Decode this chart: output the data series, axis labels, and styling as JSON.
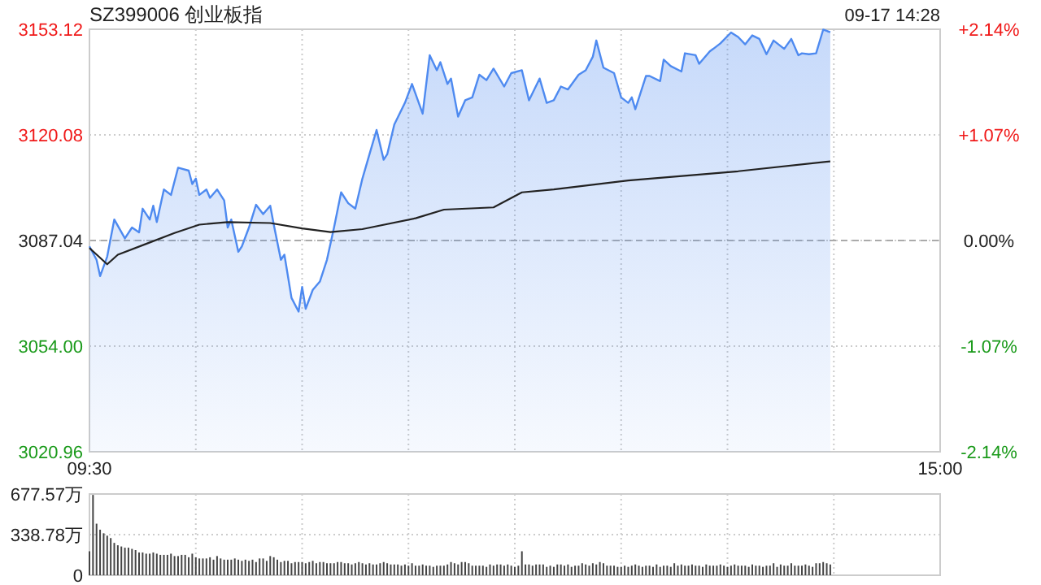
{
  "chart_data": [
    {
      "type": "line",
      "title": "SZ399006 创业板指",
      "annotations": [
        "09-17 14:28"
      ],
      "categories": [
        "09:30",
        null,
        null,
        null,
        null,
        null,
        null,
        null,
        null,
        null,
        null,
        null,
        null,
        null,
        null,
        null,
        null,
        null,
        null,
        null,
        null,
        null,
        null,
        null,
        null,
        null,
        null,
        null,
        null,
        null,
        null,
        null,
        null,
        null,
        null,
        null,
        null,
        null,
        null,
        null,
        null,
        null,
        null,
        null,
        null,
        null,
        null,
        null,
        null,
        null,
        null,
        null,
        null,
        null,
        null,
        null,
        null,
        null,
        null,
        null,
        null,
        null,
        null,
        null,
        null,
        null,
        null,
        null,
        null,
        null,
        null,
        null,
        null,
        null,
        null,
        null,
        null,
        null,
        null,
        null,
        null,
        null,
        null,
        null,
        null,
        null,
        null,
        null,
        null,
        null,
        null,
        null,
        null,
        null,
        null,
        null,
        null,
        null,
        null,
        null,
        null,
        null,
        null,
        null,
        null,
        null,
        null,
        null,
        null,
        null,
        null,
        null,
        null,
        null,
        null,
        null,
        null,
        null,
        null,
        null,
        null,
        null,
        null,
        null,
        null,
        null,
        null,
        null,
        null,
        null,
        null,
        null,
        null,
        null,
        null,
        null,
        null,
        null,
        null,
        null,
        null,
        null,
        null,
        null,
        null,
        null,
        null,
        null,
        null,
        null,
        null,
        null,
        null,
        null,
        null,
        null,
        null,
        null,
        null,
        null,
        null,
        null,
        null,
        null,
        null,
        null,
        null,
        null,
        null,
        null,
        null,
        null,
        null,
        null,
        null,
        null,
        null,
        null,
        null,
        null,
        null,
        null,
        null,
        null,
        null,
        null,
        null,
        null,
        null,
        null,
        null,
        null,
        null,
        null,
        null,
        null,
        null,
        null,
        null,
        null,
        null,
        null,
        null,
        null,
        null,
        null,
        null,
        null,
        null,
        null,
        null,
        null,
        null,
        null,
        null,
        null,
        null,
        null,
        null,
        null,
        null,
        null,
        null,
        null,
        null,
        null,
        null,
        null,
        null,
        null,
        null,
        null,
        null,
        null,
        null,
        null,
        null,
        null,
        null,
        null,
        "15:00"
      ],
      "ylim": [
        3020.96,
        3153.12
      ],
      "yticks": [
        3020.96,
        {
          "value": 3054,
          "label": "3054.00"
        },
        3087.04,
        3120.08,
        3153.12
      ],
      "y2lim": [
        -2.14,
        2.14
      ],
      "y2ticks": [
        {
          "value": -2.14,
          "label": "-2.14%"
        },
        {
          "value": -1.07,
          "label": "-1.07%"
        },
        {
          "value": 0,
          "label": "0.00%"
        },
        {
          "value": 1.07,
          "label": "+1.07%"
        },
        {
          "value": 2.14,
          "label": "+2.14%"
        }
      ],
      "grid": true,
      "ref_lines": [
        {
          "axis": "y",
          "value": 3087.04,
          "line_style": "dashed",
          "color": "#aaaaaa"
        }
      ],
      "series": [
        {
          "type": "area",
          "color": "#4e8af0",
          "values": [
            3085.2,
            null,
            3081.0,
            3075.9,
            null,
            3082.0,
            null,
            3093.6,
            null,
            null,
            3087.7,
            null,
            3091.1,
            null,
            3089.6,
            3097.0,
            null,
            3093.6,
            3097.9,
            3092.8,
            null,
            3103.0,
            null,
            3101.3,
            null,
            3109.8,
            null,
            null,
            3108.9,
            3104.7,
            3106.4,
            3101.3,
            null,
            3103.0,
            3100.4,
            null,
            3103.0,
            null,
            3099.6,
            3091.1,
            3093.6,
            null,
            3083.5,
            3085.2,
            null,
            3091.1,
            null,
            3098.2,
            null,
            3095.3,
            null,
            3097.9,
            3092.0,
            null,
            3081.0,
            3082.6,
            null,
            3069.1,
            null,
            3064.8,
            3072.5,
            3065.7,
            null,
            3071.6,
            null,
            3074.2,
            null,
            3081.0,
            null,
            3091.1,
            null,
            3102.1,
            null,
            3098.7,
            null,
            3097.0,
            null,
            3106.4,
            null,
            3114.0,
            null,
            3121.6,
            null,
            3112.3,
            3114.0,
            null,
            3123.3,
            null,
            null,
            3130.1,
            null,
            3136.0,
            null,
            null,
            3126.7,
            null,
            3145.0,
            null,
            3140.3,
            3142.8,
            null,
            3136.0,
            3137.7,
            null,
            3125.8,
            null,
            3130.9,
            null,
            3131.8,
            null,
            3138.9,
            null,
            3137.2,
            null,
            3140.8,
            null,
            null,
            3135.2,
            null,
            3139.4,
            null,
            null,
            3140.3,
            null,
            3130.9,
            null,
            null,
            3137.7,
            null,
            3130.1,
            null,
            3130.9,
            null,
            3135.2,
            null,
            3134.3,
            null,
            null,
            3138.9,
            null,
            3140.3,
            null,
            3144.5,
            3149.6,
            null,
            3141.1,
            null,
            null,
            3139.4,
            null,
            3131.8,
            null,
            3130.1,
            3131.8,
            3128.1,
            null,
            null,
            3138.5,
            3138.5,
            null,
            null,
            3136.9,
            3143.6,
            null,
            3141.6,
            null,
            null,
            3139.9,
            3145.6,
            null,
            null,
            3145.0,
            3142.3,
            null,
            null,
            3146.2,
            3147.0,
            null,
            3148.7,
            null,
            null,
            3152.1,
            null,
            3150.7,
            null,
            3148.4,
            null,
            3151.2,
            null,
            3150.1,
            null,
            3145.3,
            null,
            3149.6,
            null,
            null,
            3147.0,
            null,
            3150.1,
            null,
            3145.0,
            3145.6,
            null,
            3145.3,
            null,
            3145.6,
            null,
            3153.0,
            null,
            3152.2,
            null,
            null,
            null,
            null,
            null,
            null,
            null,
            null,
            null,
            null,
            null,
            null,
            null,
            null,
            null,
            null,
            null,
            null,
            null,
            null,
            null,
            null,
            null,
            null,
            null,
            null,
            null,
            null,
            null,
            null,
            null
          ]
        },
        {
          "type": "line",
          "color": "#222222",
          "values": [
            3084.7,
            null,
            null,
            null,
            null,
            3079.6,
            null,
            null,
            3082.6,
            null,
            null,
            null,
            null,
            null,
            null,
            null,
            3086.0,
            null,
            null,
            null,
            null,
            null,
            null,
            null,
            3089.4,
            null,
            null,
            null,
            null,
            null,
            null,
            3092.0,
            null,
            null,
            null,
            null,
            null,
            null,
            null,
            3092.8,
            null,
            null,
            null,
            null,
            null,
            null,
            null,
            null,
            null,
            null,
            null,
            3092.5,
            null,
            null,
            null,
            null,
            null,
            null,
            null,
            null,
            3090.8,
            null,
            null,
            null,
            null,
            null,
            null,
            null,
            3089.7,
            null,
            null,
            null,
            null,
            null,
            null,
            null,
            null,
            3090.6,
            null,
            null,
            null,
            null,
            null,
            null,
            null,
            null,
            null,
            null,
            null,
            null,
            null,
            null,
            3094.0,
            null,
            null,
            null,
            null,
            null,
            null,
            null,
            3096.7,
            null,
            null,
            null,
            null,
            null,
            null,
            null,
            null,
            null,
            null,
            null,
            null,
            null,
            3097.4,
            null,
            null,
            null,
            null,
            null,
            null,
            null,
            3102.1,
            null,
            null,
            null,
            null,
            null,
            null,
            null,
            null,
            3103.0,
            null,
            null,
            null,
            null,
            null,
            null,
            null,
            null,
            null,
            null,
            null,
            null,
            null,
            null,
            null,
            null,
            null,
            null,
            null,
            null,
            3105.8,
            null,
            null,
            null,
            null,
            null,
            null,
            null,
            null,
            null,
            null,
            null,
            null,
            null,
            null,
            null,
            null,
            null,
            null,
            null,
            null,
            null,
            null,
            null,
            null,
            null,
            null,
            null,
            null,
            null,
            null,
            3108.7,
            null,
            null,
            null,
            null,
            null,
            null,
            null,
            null,
            null,
            null,
            null,
            null,
            null,
            null,
            null,
            null,
            null,
            null,
            null,
            null,
            null,
            null,
            null,
            null,
            null,
            3111.8,
            null,
            null,
            null,
            null,
            null,
            null,
            null,
            null,
            null,
            null,
            null,
            null,
            null,
            null,
            null,
            null,
            null,
            null,
            null,
            null,
            null,
            null,
            null,
            null,
            null,
            null,
            null,
            null,
            null,
            null,
            null
          ]
        }
      ]
    },
    {
      "type": "bar",
      "color": "#444444",
      "tick_labels": "y",
      "grid": true,
      "categories": [
        null,
        null,
        null,
        null,
        null,
        null,
        null,
        null,
        null,
        null,
        null,
        null,
        null,
        null,
        null,
        null,
        null,
        null,
        null,
        null,
        null,
        null,
        null,
        null,
        null,
        null,
        null,
        null,
        null,
        null,
        null,
        null,
        null,
        null,
        null,
        null,
        null,
        null,
        null,
        null,
        null,
        null,
        null,
        null,
        null,
        null,
        null,
        null,
        null,
        null,
        null,
        null,
        null,
        null,
        null,
        null,
        null,
        null,
        null,
        null,
        null,
        null,
        null,
        null,
        null,
        null,
        null,
        null,
        null,
        null,
        null,
        null,
        null,
        null,
        null,
        null,
        null,
        null,
        null,
        null,
        null,
        null,
        null,
        null,
        null,
        null,
        null,
        null,
        null,
        null,
        null,
        null,
        null,
        null,
        null,
        null,
        null,
        null,
        null,
        null,
        null,
        null,
        null,
        null,
        null,
        null,
        null,
        null,
        null,
        null,
        null,
        null,
        null,
        null,
        null,
        null,
        null,
        null,
        null,
        null,
        null,
        null,
        null,
        null,
        null,
        null,
        null,
        null,
        null,
        null,
        null,
        null,
        null,
        null,
        null,
        null,
        null,
        null,
        null,
        null,
        null,
        null,
        null,
        null,
        null,
        null,
        null,
        null,
        null,
        null,
        null,
        null,
        null,
        null,
        null,
        null,
        null,
        null,
        null,
        null,
        null,
        null,
        null,
        null,
        null,
        null,
        null,
        null,
        null,
        null,
        null,
        null,
        null,
        null,
        null,
        null,
        null,
        null,
        null,
        null,
        null,
        null,
        null,
        null,
        null,
        null,
        null,
        null,
        null,
        null,
        null,
        null,
        null,
        null,
        null,
        null,
        null,
        null,
        null,
        null,
        null,
        null,
        null,
        null,
        null,
        null,
        null,
        null,
        null,
        null,
        null,
        null,
        null,
        null,
        null,
        null,
        null,
        null,
        null,
        null,
        null,
        null,
        null,
        null,
        null,
        null,
        null,
        null,
        null,
        null,
        null,
        null,
        null,
        null,
        null,
        null,
        null,
        null,
        null,
        null,
        null
      ],
      "ylim": [
        0,
        677.57
      ],
      "yticks": [
        0,
        {
          "value": 338.78,
          "label": "338.78万"
        },
        {
          "value": 677.57,
          "label": "677.57万"
        }
      ],
      "values": [
        200,
        670,
        430,
        380,
        350,
        330,
        310,
        270,
        250,
        240,
        230,
        230,
        220,
        210,
        190,
        190,
        180,
        180,
        190,
        180,
        170,
        170,
        170,
        180,
        160,
        160,
        170,
        170,
        150,
        180,
        150,
        140,
        140,
        140,
        150,
        130,
        160,
        140,
        130,
        130,
        130,
        140,
        130,
        120,
        130,
        120,
        130,
        110,
        140,
        140,
        120,
        160,
        150,
        130,
        110,
        120,
        120,
        100,
        110,
        110,
        110,
        100,
        110,
        120,
        100,
        110,
        110,
        100,
        100,
        100,
        110,
        110,
        100,
        100,
        90,
        100,
        110,
        100,
        90,
        100,
        90,
        90,
        100,
        110,
        100,
        90,
        90,
        90,
        80,
        90,
        80,
        100,
        80,
        80,
        90,
        80,
        80,
        70,
        80,
        80,
        80,
        90,
        110,
        100,
        90,
        110,
        110,
        100,
        80,
        80,
        80,
        80,
        70,
        90,
        80,
        90,
        90,
        80,
        90,
        80,
        70,
        80,
        200,
        90,
        90,
        80,
        90,
        90,
        90,
        70,
        80,
        70,
        90,
        90,
        80,
        90,
        70,
        80,
        80,
        100,
        90,
        80,
        100,
        90,
        110,
        100,
        80,
        80,
        80,
        70,
        70,
        80,
        70,
        80,
        90,
        80,
        70,
        80,
        80,
        70,
        90,
        70,
        80,
        80,
        70,
        100,
        80,
        90,
        80,
        80,
        90,
        80,
        80,
        70,
        90,
        80,
        80,
        80,
        90,
        80,
        70,
        80,
        90,
        80,
        80,
        80,
        70,
        90,
        80,
        80,
        70,
        80,
        80,
        100,
        70,
        90,
        80,
        80,
        100,
        80,
        80,
        80,
        90,
        80,
        70,
        100,
        100,
        110,
        100,
        90,
        null,
        null,
        null,
        null,
        null,
        null,
        null,
        null,
        null,
        null,
        null,
        null,
        null,
        null,
        null,
        null,
        null,
        null,
        null,
        null,
        null,
        null,
        null,
        null,
        null,
        null,
        null,
        null,
        null,
        null,
        null
      ]
    }
  ]
}
